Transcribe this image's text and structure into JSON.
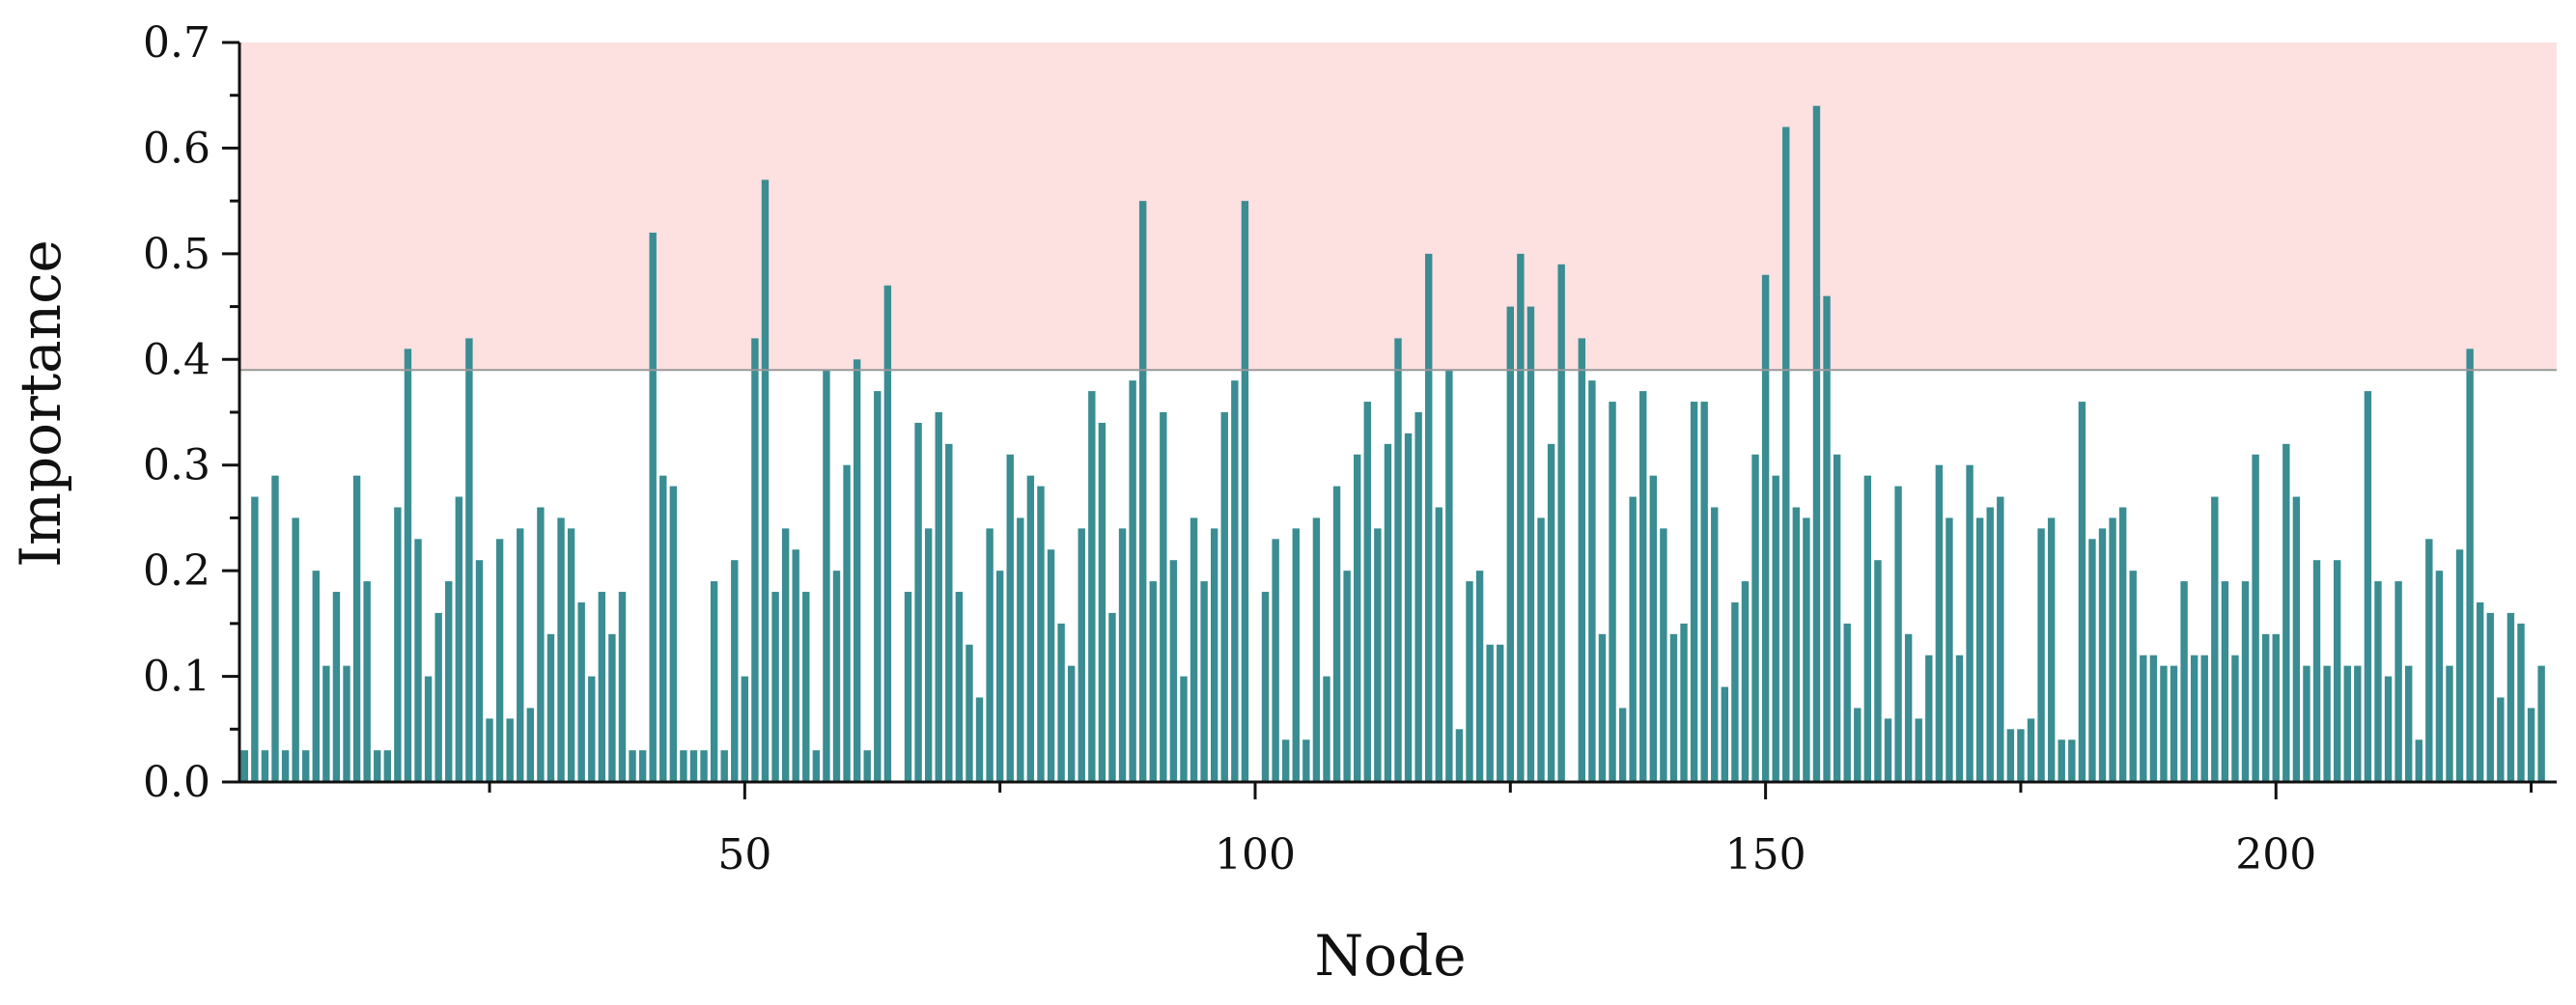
{
  "chart_data": {
    "type": "bar",
    "xlabel": "Node",
    "ylabel": "Importance",
    "xlim": [
      0.5,
      227.5
    ],
    "ylim": [
      0,
      0.7
    ],
    "y_ticks": [
      "0.0",
      "0.1",
      "0.2",
      "0.3",
      "0.4",
      "0.5",
      "0.6",
      "0.7"
    ],
    "x_ticks": [
      "50",
      "100",
      "150",
      "200"
    ],
    "threshold": 0.39,
    "colors": {
      "bar": "#3a8d92",
      "highlight_region": "#fde0e0",
      "threshold_line": "#999999",
      "axis": "#111111"
    },
    "series": [
      {
        "values": [
          0.03,
          0.27,
          0.03,
          0.29,
          0.03,
          0.25,
          0.03,
          0.2,
          0.11,
          0.18,
          0.11,
          0.29,
          0.19,
          0.03,
          0.03,
          0.26,
          0.41,
          0.23,
          0.1,
          0.16,
          0.19,
          0.27,
          0.42,
          0.21,
          0.06,
          0.23,
          0.06,
          0.24,
          0.07,
          0.26,
          0.14,
          0.25,
          0.24,
          0.17,
          0.1,
          0.18,
          0.14,
          0.18,
          0.03,
          0.03,
          0.52,
          0.29,
          0.28,
          0.03,
          0.03,
          0.03,
          0.19,
          0.03,
          0.21,
          0.1,
          0.42,
          0.57,
          0.18,
          0.24,
          0.22,
          0.18,
          0.03,
          0.39,
          0.2,
          0.3,
          0.4,
          0.03,
          0.37,
          0.47,
          0.0,
          0.18,
          0.34,
          0.24,
          0.35,
          0.32,
          0.18,
          0.13,
          0.08,
          0.24,
          0.2,
          0.31,
          0.25,
          0.29,
          0.28,
          0.22,
          0.15,
          0.11,
          0.24,
          0.37,
          0.34,
          0.16,
          0.24,
          0.38,
          0.55,
          0.19,
          0.35,
          0.21,
          0.1,
          0.25,
          0.19,
          0.24,
          0.35,
          0.38,
          0.55,
          0.0,
          0.18,
          0.23,
          0.04,
          0.24,
          0.04,
          0.25,
          0.1,
          0.28,
          0.2,
          0.31,
          0.36,
          0.24,
          0.32,
          0.42,
          0.33,
          0.35,
          0.5,
          0.26,
          0.39,
          0.05,
          0.19,
          0.2,
          0.13,
          0.13,
          0.45,
          0.5,
          0.45,
          0.25,
          0.32,
          0.49,
          0.0,
          0.42,
          0.38,
          0.14,
          0.36,
          0.07,
          0.27,
          0.37,
          0.29,
          0.24,
          0.14,
          0.15,
          0.36,
          0.36,
          0.26,
          0.09,
          0.17,
          0.19,
          0.31,
          0.48,
          0.29,
          0.62,
          0.26,
          0.25,
          0.64,
          0.46,
          0.31,
          0.15,
          0.07,
          0.29,
          0.21,
          0.06,
          0.28,
          0.14,
          0.06,
          0.12,
          0.3,
          0.25,
          0.12,
          0.3,
          0.25,
          0.26,
          0.27,
          0.05,
          0.05,
          0.06,
          0.24,
          0.25,
          0.04,
          0.04,
          0.36,
          0.23,
          0.24,
          0.25,
          0.26,
          0.2,
          0.12,
          0.12,
          0.11,
          0.11,
          0.19,
          0.12,
          0.12,
          0.27,
          0.19,
          0.12,
          0.19,
          0.31,
          0.14,
          0.14,
          0.32,
          0.27,
          0.11,
          0.21,
          0.11,
          0.21,
          0.11,
          0.11,
          0.37,
          0.19,
          0.1,
          0.19,
          0.11,
          0.04,
          0.23,
          0.2,
          0.11,
          0.22,
          0.41,
          0.17,
          0.16,
          0.08,
          0.16,
          0.15,
          0.07,
          0.11
        ]
      }
    ]
  }
}
